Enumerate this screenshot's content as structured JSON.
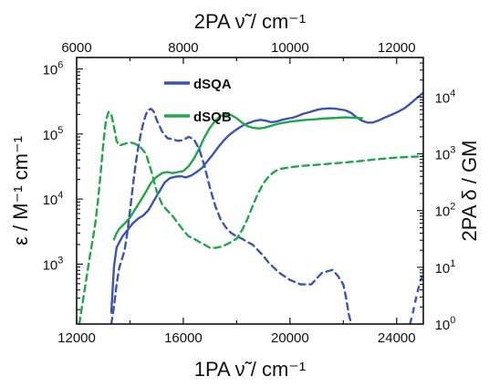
{
  "colors": {
    "dSQA": "#3b55b4",
    "dSQB": "#1fa84a",
    "axis": "#111111"
  },
  "chart_data": {
    "type": "line",
    "x_bottom": {
      "label": "1PA ν̃ / cm⁻¹",
      "ticks": [
        "12000",
        "16000",
        "20000",
        "24000"
      ],
      "range": [
        12000,
        25000
      ]
    },
    "x_top": {
      "label": "2PA ν̃ / cm⁻¹",
      "ticks": [
        "6000",
        "8000",
        "10000",
        "12000"
      ],
      "range": [
        6000,
        12500
      ]
    },
    "y_left": {
      "label": "ε / M⁻¹ cm⁻¹",
      "scale": "log",
      "range": [
        120,
        1500000
      ],
      "ticks": [
        "10^3",
        "10^4",
        "10^5",
        "10^6"
      ]
    },
    "y_right": {
      "label": "2PA δ / GM",
      "scale": "log",
      "range": [
        1,
        50000
      ],
      "ticks": [
        "10^0",
        "10^1",
        "10^2",
        "10^3",
        "10^4"
      ]
    },
    "legend": {
      "position": "top-left",
      "entries": [
        "dSQA",
        "dSQB"
      ]
    },
    "series": [
      {
        "name": "dSQA",
        "kind": "1PA solid",
        "color_key": "dSQA",
        "x": [
          13300,
          13400,
          13500,
          13700,
          13900,
          14100,
          14300,
          14500,
          14700,
          14900,
          15100,
          15300,
          15500,
          15700,
          15900,
          16100,
          16300,
          16500,
          16700,
          16900,
          17100,
          17300,
          17500,
          17700,
          17900,
          18100,
          18300,
          18500,
          18700,
          18900,
          19100,
          19300,
          19500,
          19700,
          19900,
          20100,
          20300,
          20500,
          20700,
          20900,
          21100,
          21300,
          21500,
          21700,
          21900,
          22100,
          22300,
          22500,
          22700,
          22900,
          23100,
          23300,
          23500,
          23700,
          23900,
          24100,
          24300,
          24500,
          24700,
          24900,
          25000
        ],
        "y": [
          180,
          900,
          1800,
          2600,
          3300,
          4200,
          5000,
          5600,
          6800,
          9500,
          13000,
          18000,
          21000,
          22000,
          22500,
          21500,
          23000,
          26000,
          30000,
          38000,
          48000,
          62000,
          78000,
          95000,
          110000,
          125000,
          140000,
          150000,
          160000,
          165000,
          160000,
          152000,
          156000,
          165000,
          172000,
          178000,
          190000,
          205000,
          215000,
          228000,
          240000,
          245000,
          248000,
          245000,
          238000,
          230000,
          210000,
          180000,
          160000,
          150000,
          150000,
          160000,
          175000,
          190000,
          205000,
          225000,
          250000,
          290000,
          340000,
          400000,
          430000
        ]
      },
      {
        "name": "dSQB",
        "kind": "1PA solid",
        "color_key": "dSQB",
        "x": [
          13400,
          13500,
          13600,
          13800,
          14000,
          14200,
          14400,
          14600,
          14800,
          15000,
          15200,
          15400,
          15600,
          15800,
          16000,
          16200,
          16400,
          16600,
          16800,
          17000,
          17200,
          17400,
          17600,
          17800,
          18000,
          18200,
          18400,
          18600,
          18800,
          19000,
          19200,
          19400,
          19600,
          19800,
          20000,
          20300,
          20600,
          20900,
          21200,
          21500,
          21800,
          22100,
          22400,
          22700
        ],
        "y": [
          2400,
          3000,
          3500,
          4200,
          5200,
          7000,
          9500,
          13000,
          18000,
          22000,
          25000,
          26000,
          25000,
          26000,
          27000,
          32000,
          42000,
          60000,
          90000,
          125000,
          160000,
          190000,
          200000,
          195000,
          175000,
          150000,
          132000,
          125000,
          122000,
          124000,
          130000,
          138000,
          145000,
          150000,
          155000,
          160000,
          165000,
          168000,
          172000,
          175000,
          178000,
          180000,
          178000,
          175000
        ]
      },
      {
        "name": "dSQA",
        "kind": "2PA dashed",
        "color_key": "dSQA",
        "x": [
          6650,
          6700,
          6750,
          6800,
          6850,
          6900,
          6950,
          7000,
          7050,
          7100,
          7150,
          7200,
          7250,
          7300,
          7350,
          7400,
          7450,
          7500,
          7600,
          7700,
          7800,
          7900,
          8000,
          8100,
          8200,
          8300,
          8400,
          8500,
          8600,
          8700,
          8800,
          8900,
          9000,
          9100,
          9200,
          9300,
          9400,
          9500,
          9600,
          9800,
          10000,
          10200,
          10400,
          10600,
          10800,
          10900,
          11000,
          11050,
          11100,
          11150
        ],
        "y": [
          1,
          2,
          5,
          10,
          14,
          20,
          40,
          100,
          250,
          600,
          1200,
          2200,
          3500,
          5000,
          6000,
          6200,
          5500,
          4000,
          2500,
          1900,
          1800,
          1700,
          1750,
          2000,
          1800,
          1200,
          600,
          250,
          120,
          70,
          50,
          40,
          35,
          32,
          28,
          25,
          20,
          16,
          12,
          8,
          6,
          5,
          5,
          8,
          9,
          7,
          5,
          3,
          1.5,
          1
        ],
        "x2": [
          12250,
          12300,
          12350,
          12400,
          12450,
          12500
        ],
        "y2": [
          1,
          1.5,
          2.5,
          4,
          6,
          8
        ]
      },
      {
        "name": "dSQB",
        "kind": "2PA dashed",
        "color_key": "dSQB",
        "x": [
          6050,
          6100,
          6150,
          6200,
          6250,
          6300,
          6350,
          6400,
          6450,
          6500,
          6550,
          6600,
          6650,
          6700,
          6750,
          6800,
          6850,
          6900,
          6950,
          7000,
          7050,
          7100,
          7150,
          7200,
          7300,
          7400,
          7500,
          7600,
          7700,
          7800,
          7900,
          8000,
          8100,
          8200,
          8300,
          8400,
          8500,
          8600,
          8700,
          8800,
          8900,
          9000,
          9100,
          9200,
          9300,
          9400,
          9500,
          9600,
          9700,
          9800,
          10000,
          10200,
          10400,
          10600,
          10800,
          11000,
          11200,
          11400,
          11600,
          11800,
          12000,
          12200,
          12400,
          12500
        ],
        "y": [
          1,
          2,
          4,
          8,
          16,
          30,
          60,
          150,
          450,
          1500,
          4000,
          5500,
          5000,
          3000,
          1700,
          1400,
          1450,
          1500,
          1550,
          1600,
          1550,
          1500,
          1400,
          1300,
          1000,
          500,
          220,
          130,
          100,
          80,
          60,
          45,
          35,
          32,
          28,
          25,
          22,
          22,
          23,
          25,
          28,
          32,
          45,
          70,
          120,
          200,
          300,
          400,
          480,
          540,
          580,
          610,
          630,
          650,
          680,
          700,
          730,
          760,
          800,
          830,
          860,
          880,
          900,
          920
        ]
      }
    ]
  }
}
